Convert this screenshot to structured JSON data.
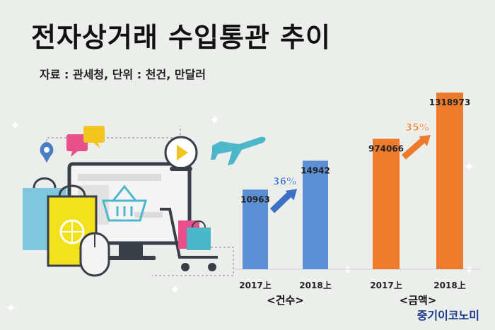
{
  "header": {
    "title": "전자상거래 수입통관 추이",
    "subtitle": "자료 : 관세청, 단위 : 천건, 만달러"
  },
  "brand": {
    "logo": "중기이코노미"
  },
  "colors": {
    "blue": "#5b8fd6",
    "orange": "#ec7b2c",
    "blue_arrow": "#3d6fc4",
    "orange_arrow": "#ec7b2c",
    "background": "#eceeec"
  },
  "chart_data": [
    {
      "type": "bar",
      "group_label": "<건수>",
      "categories": [
        "2017上",
        "2018上"
      ],
      "values": [
        10963,
        14942
      ],
      "growth_label": "36%",
      "color": "#5b8fd6",
      "ylim": [
        0,
        18000
      ]
    },
    {
      "type": "bar",
      "group_label": "<금액>",
      "categories": [
        "2017上",
        "2018上"
      ],
      "values": [
        974066,
        1318973
      ],
      "growth_label": "35%",
      "color": "#ec7b2c",
      "ylim": [
        0,
        1318973
      ]
    }
  ]
}
